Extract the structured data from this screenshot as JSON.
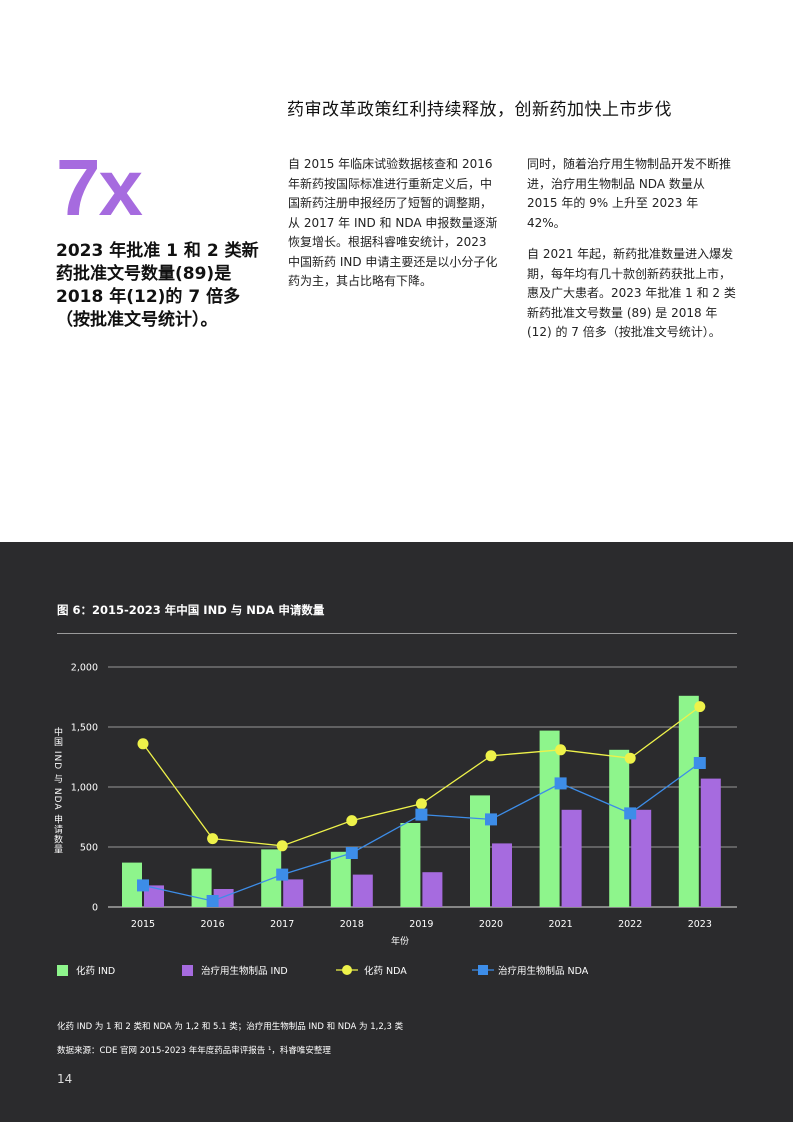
{
  "headline": "药审改革政策红利持续释放，创新药加快上市步伐",
  "big_number": "7x",
  "big_stat": "2023 年批准 1 和 2 类新药批准文号数量(89)是 2018 年(12)的 7 倍多（按批准文号统计）。",
  "col1": [
    "自 2015 年临床试验数据核查和 2016 年新药按国际标准进行重新定义后，中国新药注册申报经历了短暂的调整期，从 2017 年 IND 和 NDA 申报数量逐渐恢复增长。根据科睿唯安统计，2023 中国新药 IND 申请主要还是以小分子化药为主，其占比略有下降。"
  ],
  "col2": [
    "同时，随着治疗用生物制品开发不断推进，治疗用生物制品 NDA 数量从 2015 年的 9% 上升至 2023 年 42%。",
    "自 2021 年起，新药批准数量进入爆发期，每年均有几十款创新药获批上市，惠及广大患者。2023 年批准 1 和 2 类新药批准文号数量 (89) 是 2018 年 (12) 的 7 倍多（按批准文号统计）。"
  ],
  "figure": {
    "title": "图 6：2015-2023 年中国 IND 与 NDA 申请数量",
    "note": "化药 IND 为 1 和 2 类和 NDA 为 1,2 和 5.1 类；治疗用生物制品 IND 和 NDA 为 1,2,3 类",
    "source": "数据来源：CDE 官网 2015-2023 年年度药品审评报告 ¹，科睿唯安整理"
  },
  "chart_data": {
    "type": "bar",
    "categories": [
      "2015",
      "2016",
      "2017",
      "2018",
      "2019",
      "2020",
      "2021",
      "2022",
      "2023"
    ],
    "xlabel": "年份",
    "ylabel": "中国 IND 与 NDA 申请数量",
    "ylim": [
      0,
      2000
    ],
    "yticks": [
      0,
      500,
      1000,
      1500,
      2000
    ],
    "ytick_labels": [
      "0",
      "500",
      "1,000",
      "1,500",
      "2,000"
    ],
    "grid": true,
    "legend_position": "bottom",
    "series": [
      {
        "name": "化药 IND",
        "kind": "bar",
        "color": "#8ef58c",
        "values": [
          370,
          320,
          480,
          460,
          700,
          930,
          1470,
          1310,
          1760
        ]
      },
      {
        "name": "治疗用生物制品 IND",
        "kind": "bar",
        "color": "#a66bdf",
        "values": [
          180,
          150,
          230,
          270,
          290,
          530,
          810,
          810,
          1070
        ]
      },
      {
        "name": "化药 NDA",
        "kind": "line",
        "marker": "circle",
        "color": "#eef24a",
        "values": [
          1360,
          570,
          510,
          720,
          860,
          1260,
          1310,
          1240,
          1670
        ]
      },
      {
        "name": "治疗用生物制品 NDA",
        "kind": "line",
        "marker": "square",
        "color": "#3d8de8",
        "values": [
          180,
          50,
          270,
          450,
          770,
          730,
          1030,
          780,
          1200
        ]
      }
    ]
  },
  "page_number": "14"
}
